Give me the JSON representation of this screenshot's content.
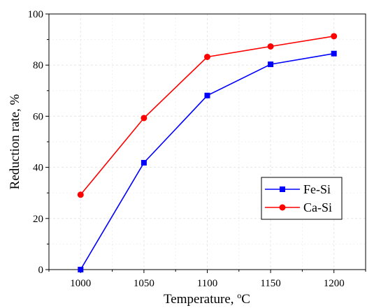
{
  "chart_data": {
    "type": "line",
    "xlabel": "Temperature, °C",
    "ylabel": "Reduction rate, %",
    "x": [
      1000,
      1050,
      1100,
      1150,
      1200
    ],
    "xticks": [
      "1000",
      "1050",
      "1100",
      "1150",
      "1200"
    ],
    "yticks": [
      "0",
      "20",
      "40",
      "60",
      "80",
      "100"
    ],
    "xlim": [
      975,
      1225
    ],
    "ylim": [
      0,
      100
    ],
    "grid": true,
    "legend_position": "lower-right",
    "series": [
      {
        "name": "Fe-Si",
        "color": "#0000ff",
        "marker": "square",
        "values": [
          0,
          41.8,
          68.1,
          80.3,
          84.5
        ]
      },
      {
        "name": "Ca-Si",
        "color": "#ff0000",
        "marker": "circle",
        "values": [
          29.3,
          59.3,
          83.2,
          87.3,
          91.3
        ]
      }
    ]
  }
}
